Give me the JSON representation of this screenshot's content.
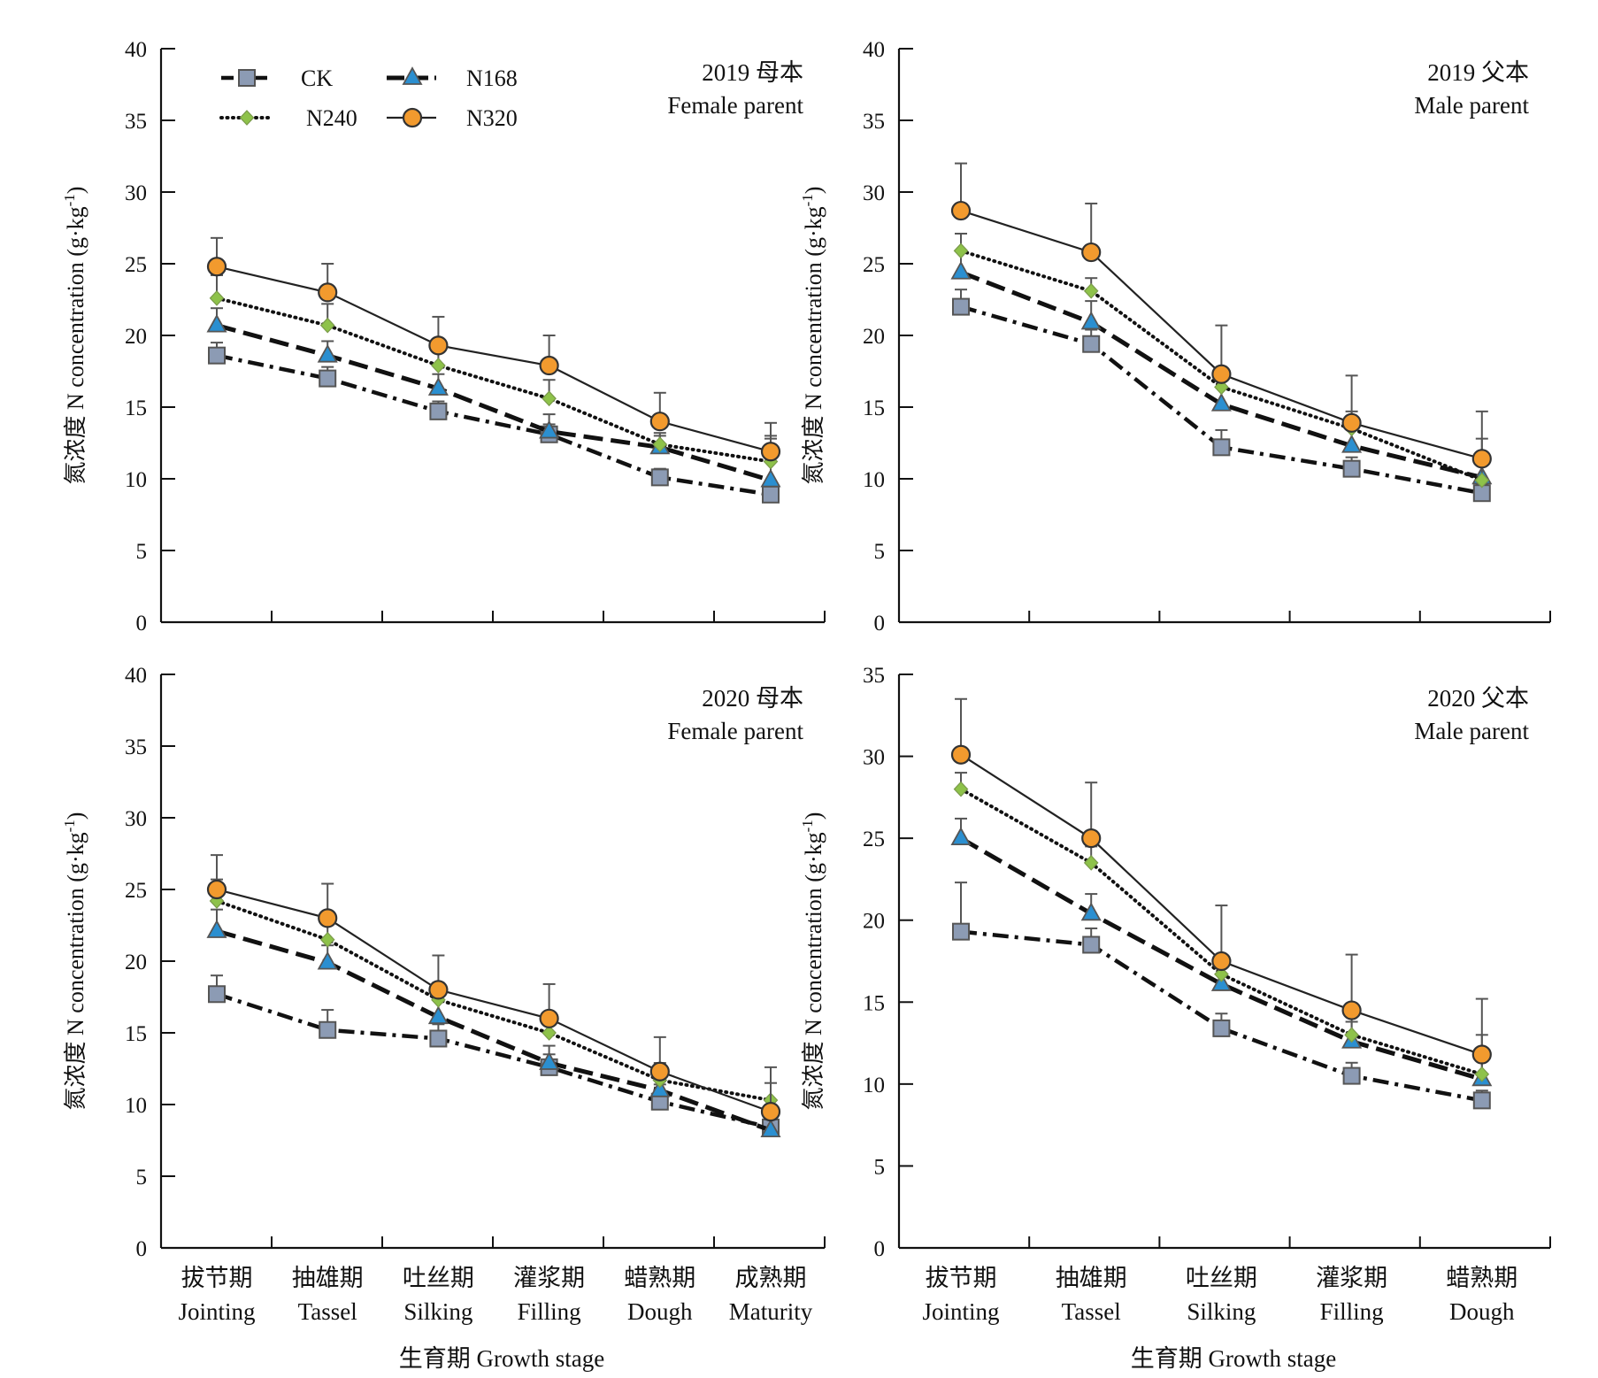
{
  "legend": {
    "items": [
      {
        "key": "CK",
        "label": "CK",
        "marker": "square",
        "line": "dashdot"
      },
      {
        "key": "N168",
        "label": "N168",
        "marker": "triangle",
        "line": "dash"
      },
      {
        "key": "N240",
        "label": "N240",
        "marker": "diamond",
        "line": "dot"
      },
      {
        "key": "N320",
        "label": "N320",
        "marker": "circle",
        "line": "solid"
      }
    ]
  },
  "colors": {
    "CK": "#8c9bb4",
    "N168": "#2b8fd0",
    "N240": "#8ec24a",
    "N320": "#f29a2e",
    "marker_edge": "#555555",
    "axis": "#111111"
  },
  "ylabel_cn": "氮浓度 N concentration (g·kg",
  "ylabel_exp": "-1",
  "ylabel_close": ")",
  "xlabel": "生育期  Growth stage",
  "chart_data": [
    {
      "type": "line",
      "title_line1": "2019 母本",
      "title_line2": "Female parent",
      "categories_cn": [
        "拔节期",
        "抽雄期",
        "吐丝期",
        "灌浆期",
        "蜡熟期",
        "成熟期"
      ],
      "categories_en": [
        "Jointing",
        "Tassel",
        "Silking",
        "Filling",
        "Dough",
        "Maturity"
      ],
      "ylim": [
        0,
        40
      ],
      "yticks": [
        0,
        5,
        10,
        15,
        20,
        25,
        30,
        35,
        40
      ],
      "show_category_labels": false,
      "show_legend": true,
      "series": [
        {
          "name": "CK",
          "values": [
            18.6,
            17.0,
            14.7,
            13.1,
            10.1,
            8.9
          ],
          "errors": [
            0.9,
            0.8,
            0.7,
            0.7,
            0.6,
            0.5
          ]
        },
        {
          "name": "N168",
          "values": [
            20.7,
            18.6,
            16.3,
            13.3,
            12.2,
            9.9
          ],
          "errors": [
            1.2,
            1.0,
            1.0,
            1.2,
            0.8,
            2.9
          ]
        },
        {
          "name": "N240",
          "values": [
            22.6,
            20.7,
            17.9,
            15.6,
            12.4,
            11.2
          ],
          "errors": [
            1.6,
            1.5,
            1.5,
            1.3,
            0.8,
            1.8
          ]
        },
        {
          "name": "N320",
          "values": [
            24.8,
            23.0,
            19.3,
            17.9,
            14.0,
            11.9
          ],
          "errors": [
            2.0,
            2.0,
            2.0,
            2.1,
            2.0,
            2.0
          ]
        }
      ]
    },
    {
      "type": "line",
      "title_line1": "2019 父本",
      "title_line2": "Male parent",
      "categories_cn": [
        "拔节期",
        "抽雄期",
        "吐丝期",
        "灌浆期",
        "蜡熟期"
      ],
      "categories_en": [
        "Jointing",
        "Tassel",
        "Silking",
        "Filling",
        "Dough"
      ],
      "ylim": [
        0,
        40
      ],
      "yticks": [
        0,
        5,
        10,
        15,
        20,
        25,
        30,
        35,
        40
      ],
      "show_category_labels": false,
      "show_legend": false,
      "series": [
        {
          "name": "CK",
          "values": [
            22.0,
            19.4,
            12.2,
            10.7,
            9.0
          ],
          "errors": [
            1.2,
            1.0,
            1.2,
            0.8,
            0.6
          ]
        },
        {
          "name": "N168",
          "values": [
            24.4,
            20.9,
            15.2,
            12.3,
            10.1
          ],
          "errors": [
            1.5,
            1.5,
            1.2,
            1.2,
            1.2
          ]
        },
        {
          "name": "N240",
          "values": [
            25.9,
            23.1,
            16.4,
            13.5,
            9.9
          ],
          "errors": [
            1.2,
            0.9,
            1.0,
            1.2,
            2.9
          ]
        },
        {
          "name": "N320",
          "values": [
            28.7,
            25.8,
            17.3,
            13.9,
            11.4
          ],
          "errors": [
            3.3,
            3.4,
            3.4,
            3.3,
            3.3
          ]
        }
      ]
    },
    {
      "type": "line",
      "title_line1": "2020 母本",
      "title_line2": "Female parent",
      "categories_cn": [
        "拔节期",
        "抽雄期",
        "吐丝期",
        "灌浆期",
        "蜡熟期",
        "成熟期"
      ],
      "categories_en": [
        "Jointing",
        "Tassel",
        "Silking",
        "Filling",
        "Dough",
        "Maturity"
      ],
      "ylim": [
        0,
        40
      ],
      "yticks": [
        0,
        5,
        10,
        15,
        20,
        25,
        30,
        35,
        40
      ],
      "show_category_labels": true,
      "show_legend": false,
      "series": [
        {
          "name": "CK",
          "values": [
            17.7,
            15.2,
            14.6,
            12.6,
            10.2,
            8.4
          ],
          "errors": [
            1.3,
            1.4,
            1.0,
            0.9,
            1.2,
            0.7
          ]
        },
        {
          "name": "N168",
          "values": [
            22.1,
            19.9,
            16.1,
            12.9,
            11.0,
            8.2
          ],
          "errors": [
            1.5,
            1.2,
            1.2,
            1.2,
            1.2,
            1.2
          ]
        },
        {
          "name": "N240",
          "values": [
            24.2,
            21.5,
            17.3,
            15.0,
            11.7,
            10.3
          ],
          "errors": [
            1.5,
            1.2,
            1.2,
            1.2,
            1.2,
            1.2
          ]
        },
        {
          "name": "N320",
          "values": [
            25.0,
            23.0,
            18.0,
            16.0,
            12.3,
            9.5
          ],
          "errors": [
            2.4,
            2.4,
            2.4,
            2.4,
            2.4,
            3.1
          ]
        }
      ]
    },
    {
      "type": "line",
      "title_line1": "2020 父本",
      "title_line2": "Male parent",
      "categories_cn": [
        "拔节期",
        "抽雄期",
        "吐丝期",
        "灌浆期",
        "蜡熟期"
      ],
      "categories_en": [
        "Jointing",
        "Tassel",
        "Silking",
        "Filling",
        "Dough"
      ],
      "ylim": [
        0,
        35
      ],
      "yticks": [
        0,
        5,
        10,
        15,
        20,
        25,
        30,
        35
      ],
      "show_category_labels": true,
      "show_legend": false,
      "series": [
        {
          "name": "CK",
          "values": [
            19.3,
            18.5,
            13.4,
            10.5,
            9.0
          ],
          "errors": [
            3.0,
            1.0,
            0.9,
            0.8,
            0.6
          ]
        },
        {
          "name": "N168",
          "values": [
            25.0,
            20.4,
            16.1,
            12.6,
            10.3
          ],
          "errors": [
            1.2,
            1.2,
            1.2,
            1.2,
            1.2
          ]
        },
        {
          "name": "N240",
          "values": [
            28.0,
            23.5,
            16.7,
            13.0,
            10.6
          ],
          "errors": [
            1.0,
            1.0,
            1.2,
            1.2,
            2.4
          ]
        },
        {
          "name": "N320",
          "values": [
            30.1,
            25.0,
            17.5,
            14.5,
            11.8
          ],
          "errors": [
            3.4,
            3.4,
            3.4,
            3.4,
            3.4
          ]
        }
      ]
    }
  ]
}
